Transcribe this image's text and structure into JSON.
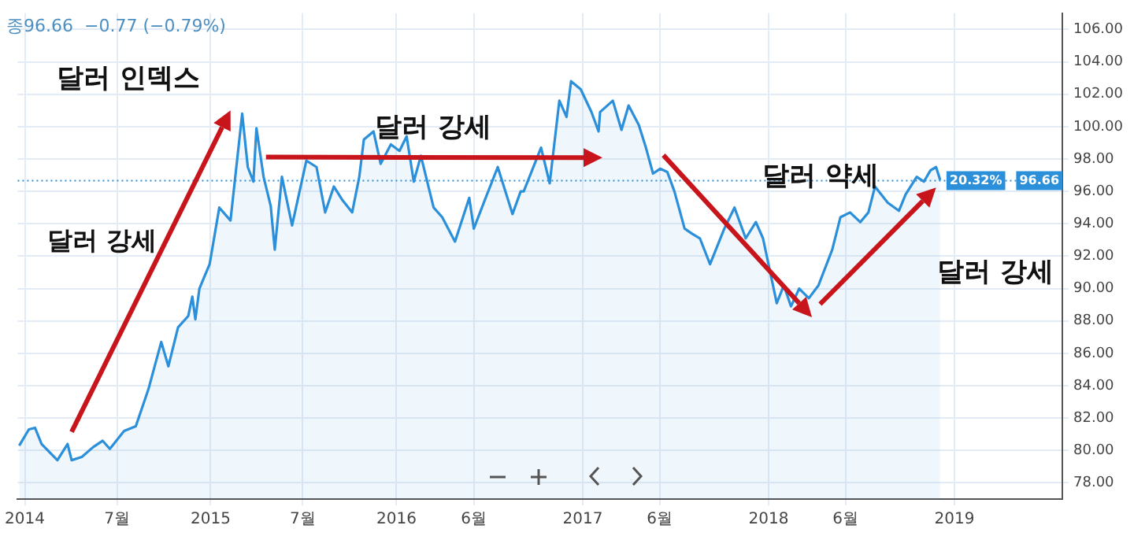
{
  "chart_data": {
    "type": "area",
    "title": "달러 인덱스",
    "x": [
      "2013-12-21",
      "2014-01-09",
      "2014-01-21",
      "2014-02-03",
      "2014-03-06",
      "2014-03-26",
      "2014-04-03",
      "2014-04-23",
      "2014-05-15",
      "2014-06-03",
      "2014-06-17",
      "2014-07-15",
      "2014-08-07",
      "2014-09-01",
      "2014-09-26",
      "2014-10-10",
      "2014-10-29",
      "2014-11-18",
      "2014-11-26",
      "2014-12-02",
      "2014-12-10",
      "2014-12-30",
      "2015-01-18",
      "2015-02-09",
      "2015-03-04",
      "2015-03-15",
      "2015-03-26",
      "2015-04-01",
      "2015-04-15",
      "2015-04-29",
      "2015-05-07",
      "2015-05-21",
      "2015-06-10",
      "2015-07-08",
      "2015-07-28",
      "2015-08-14",
      "2015-08-31",
      "2015-09-16",
      "2015-10-06",
      "2015-10-20",
      "2015-10-29",
      "2015-11-17",
      "2015-12-01",
      "2015-12-21",
      "2016-01-07",
      "2016-01-21",
      "2016-02-04",
      "2016-02-18",
      "2016-03-14",
      "2016-03-31",
      "2016-04-25",
      "2016-05-23",
      "2016-06-01",
      "2016-06-23",
      "2016-07-18",
      "2016-08-16",
      "2016-09-01",
      "2016-09-07",
      "2016-10-11",
      "2016-10-28",
      "2016-11-16",
      "2016-11-30",
      "2016-12-09",
      "2016-12-28",
      "2017-01-18",
      "2017-02-01",
      "2017-02-04",
      "2017-03-01",
      "2017-03-18",
      "2017-04-01",
      "2017-04-21",
      "2017-05-05",
      "2017-05-19",
      "2017-06-02",
      "2017-06-16",
      "2017-06-30",
      "2017-07-20",
      "2017-08-03",
      "2017-08-19",
      "2017-09-08",
      "2017-10-06",
      "2017-10-26",
      "2017-11-17",
      "2017-12-07",
      "2017-12-21",
      "2018-01-17",
      "2018-01-31",
      "2018-02-14",
      "2018-03-02",
      "2018-03-21",
      "2018-04-09",
      "2018-04-25",
      "2018-05-06",
      "2018-05-22",
      "2018-06-10",
      "2018-06-30",
      "2018-07-16",
      "2018-07-29",
      "2018-08-23",
      "2018-09-14",
      "2018-09-27",
      "2018-10-19",
      "2018-11-02",
      "2018-11-15",
      "2018-11-26",
      "2018-12-04"
    ],
    "series": [
      {
        "color": "#2b8fd9",
        "values": [
          80.3,
          81.3,
          81.4,
          80.4,
          79.4,
          80.4,
          79.4,
          79.6,
          80.2,
          80.6,
          80.1,
          81.2,
          81.5,
          83.8,
          86.7,
          85.2,
          87.6,
          88.3,
          89.5,
          88.1,
          90.0,
          91.5,
          95.0,
          94.2,
          100.8,
          97.5,
          96.6,
          99.9,
          96.9,
          95.1,
          92.4,
          96.9,
          93.9,
          97.9,
          97.5,
          94.7,
          96.3,
          95.5,
          94.7,
          96.9,
          99.2,
          99.7,
          97.7,
          98.9,
          98.5,
          99.4,
          96.6,
          98.2,
          95.0,
          94.4,
          92.9,
          95.6,
          93.7,
          95.5,
          97.5,
          94.6,
          96.0,
          96.0,
          98.7,
          96.5,
          101.6,
          100.6,
          102.8,
          102.3,
          100.9,
          99.7,
          100.9,
          101.6,
          99.8,
          101.3,
          100.1,
          98.7,
          97.1,
          97.4,
          97.2,
          96.0,
          93.7,
          93.4,
          93.1,
          91.5,
          93.7,
          95.0,
          93.1,
          94.1,
          93.1,
          89.1,
          90.2,
          88.9,
          90.0,
          89.4,
          90.2,
          91.5,
          92.4,
          94.4,
          94.7,
          94.1,
          94.7,
          96.3,
          95.3,
          94.8,
          95.8,
          96.9,
          96.6,
          97.3,
          97.5,
          96.7
        ]
      }
    ],
    "xlim": [
      "2013-12-18",
      "2019-08-01"
    ],
    "xticks": [
      {
        "value": "2014",
        "label": "2014"
      },
      {
        "value": "2014-07",
        "label": "7월"
      },
      {
        "value": "2015",
        "label": "2015"
      },
      {
        "value": "2015-07",
        "label": "7월"
      },
      {
        "value": "2016",
        "label": "2016"
      },
      {
        "value": "2016-06",
        "label": "6월"
      },
      {
        "value": "2017",
        "label": "2017"
      },
      {
        "value": "2017-06",
        "label": "6월"
      },
      {
        "value": "2018",
        "label": "2018"
      },
      {
        "value": "2018-06",
        "label": "6월"
      },
      {
        "value": "2019",
        "label": "2019"
      }
    ],
    "ylim": [
      77,
      107
    ],
    "yticks": [
      {
        "value": 78,
        "label": "78.00"
      },
      {
        "value": 80,
        "label": "80.00"
      },
      {
        "value": 82,
        "label": "82.00"
      },
      {
        "value": 84,
        "label": "84.00"
      },
      {
        "value": 86,
        "label": "86.00"
      },
      {
        "value": 88,
        "label": "88.00"
      },
      {
        "value": 90,
        "label": "90.00"
      },
      {
        "value": 92,
        "label": "92.00"
      },
      {
        "value": 94,
        "label": "94.00"
      },
      {
        "value": 96,
        "label": "96.00"
      },
      {
        "value": 98,
        "label": "98.00"
      },
      {
        "value": 100,
        "label": "100.00"
      },
      {
        "value": 102,
        "label": "102.00"
      },
      {
        "value": 104,
        "label": "104.00"
      },
      {
        "value": 106,
        "label": "106.00"
      }
    ],
    "ref_lines": [
      {
        "axis": "y",
        "value": 96.66,
        "label": "96.66",
        "color": "#2b8fd9",
        "line_style": "dotted"
      }
    ],
    "annotations": [
      "종96.66  −0.77 (−0.79%)",
      "달러 강세",
      "달러 강세",
      "달러 약세",
      "달러 강세",
      {
        "text": "20.32%",
        "x": "2018-12-04",
        "y": 96.66
      }
    ],
    "grid": true,
    "legend": false
  }
}
